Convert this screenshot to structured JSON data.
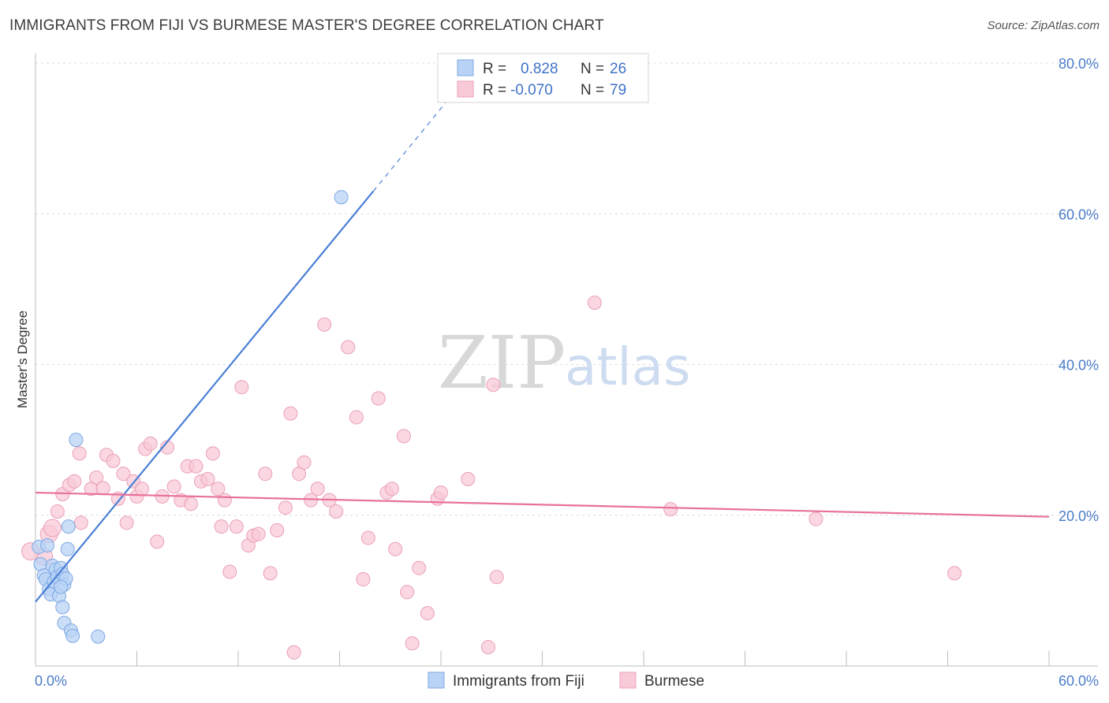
{
  "title": "IMMIGRANTS FROM FIJI VS BURMESE MASTER'S DEGREE CORRELATION CHART",
  "source": "Source: ZipAtlas.com",
  "watermark": {
    "zip": "ZIP",
    "atlas": "atlas"
  },
  "colors": {
    "fiji": "#4a7fd6",
    "burmese": "#e8719a",
    "fiji_fill": "#b8d3f5",
    "burmese_fill": "#f8c9d7"
  },
  "legend": {
    "r_label": "R =",
    "n_label": "N =",
    "fiji": {
      "r": "0.828",
      "n": "26"
    },
    "burmese": {
      "r": "-0.070",
      "n": "79"
    }
  },
  "bottom_legend": [
    "Immigrants from Fiji",
    "Burmese"
  ],
  "chart_data": {
    "type": "scatter",
    "title": "IMMIGRANTS FROM FIJI VS BURMESE MASTER'S DEGREE CORRELATION CHART",
    "xlabel": "",
    "ylabel": "Master's Degree",
    "xlim": [
      0,
      60
    ],
    "ylim": [
      0,
      80
    ],
    "x_tick_labels": [
      "0.0%",
      "60.0%"
    ],
    "y_tick_labels": [
      "20.0%",
      "40.0%",
      "60.0%",
      "80.0%"
    ],
    "y_ticks": [
      20,
      40,
      60,
      80
    ],
    "grid": true,
    "series": [
      {
        "name": "Immigrants from Fiji",
        "points": [
          [
            0.2,
            15.8
          ],
          [
            0.3,
            13.5
          ],
          [
            0.5,
            12.0
          ],
          [
            0.6,
            11.5
          ],
          [
            0.7,
            16.0
          ],
          [
            0.8,
            10.2
          ],
          [
            0.9,
            9.5
          ],
          [
            1.0,
            13.3
          ],
          [
            1.1,
            11.2
          ],
          [
            1.2,
            12.8
          ],
          [
            1.3,
            11.8
          ],
          [
            1.4,
            9.3
          ],
          [
            1.5,
            13.0
          ],
          [
            1.6,
            12.2
          ],
          [
            1.7,
            10.8
          ],
          [
            1.8,
            11.6
          ],
          [
            1.5,
            10.5
          ],
          [
            1.6,
            7.8
          ],
          [
            1.9,
            15.5
          ],
          [
            1.95,
            18.5
          ],
          [
            2.4,
            30.0
          ],
          [
            1.7,
            5.7
          ],
          [
            2.1,
            4.7
          ],
          [
            2.2,
            4.0
          ],
          [
            3.7,
            3.9
          ],
          [
            18.1,
            62.2
          ]
        ],
        "trend": {
          "x0": 0,
          "y0": 8.5,
          "x1": 20,
          "y1": 63.0,
          "dash_to_x": 24.3,
          "dash_to_y": 74.8
        }
      },
      {
        "name": "Burmese",
        "points": [
          [
            0.5,
            14.5
          ],
          [
            0.8,
            17.5
          ],
          [
            1.0,
            18.3
          ],
          [
            1.3,
            20.5
          ],
          [
            1.6,
            22.8
          ],
          [
            2.0,
            24.0
          ],
          [
            2.3,
            24.5
          ],
          [
            2.6,
            28.2
          ],
          [
            2.7,
            19.0
          ],
          [
            3.3,
            23.5
          ],
          [
            3.6,
            25.0
          ],
          [
            4.0,
            23.6
          ],
          [
            4.2,
            28.0
          ],
          [
            4.6,
            27.2
          ],
          [
            4.9,
            22.2
          ],
          [
            5.2,
            25.5
          ],
          [
            5.4,
            19.0
          ],
          [
            5.8,
            24.5
          ],
          [
            6.0,
            22.5
          ],
          [
            6.3,
            23.5
          ],
          [
            6.5,
            28.8
          ],
          [
            6.8,
            29.5
          ],
          [
            7.2,
            16.5
          ],
          [
            7.5,
            22.5
          ],
          [
            7.8,
            29.0
          ],
          [
            8.2,
            23.8
          ],
          [
            8.6,
            22.0
          ],
          [
            9.0,
            26.5
          ],
          [
            9.2,
            21.5
          ],
          [
            9.5,
            26.5
          ],
          [
            9.8,
            24.5
          ],
          [
            10.2,
            24.8
          ],
          [
            10.5,
            28.2
          ],
          [
            10.8,
            23.5
          ],
          [
            11.0,
            18.5
          ],
          [
            11.2,
            22.0
          ],
          [
            11.5,
            12.5
          ],
          [
            11.9,
            18.5
          ],
          [
            12.2,
            37.0
          ],
          [
            12.6,
            16.0
          ],
          [
            12.9,
            17.3
          ],
          [
            13.2,
            17.5
          ],
          [
            13.6,
            25.5
          ],
          [
            13.9,
            12.3
          ],
          [
            14.3,
            18.0
          ],
          [
            14.8,
            21.0
          ],
          [
            15.1,
            33.5
          ],
          [
            15.3,
            1.8
          ],
          [
            15.6,
            25.5
          ],
          [
            15.9,
            27.0
          ],
          [
            16.3,
            22.0
          ],
          [
            16.7,
            23.5
          ],
          [
            17.1,
            45.3
          ],
          [
            17.4,
            22.0
          ],
          [
            17.8,
            20.5
          ],
          [
            18.5,
            42.3
          ],
          [
            19.0,
            33.0
          ],
          [
            19.4,
            11.5
          ],
          [
            19.7,
            17.0
          ],
          [
            20.3,
            35.5
          ],
          [
            20.8,
            23.0
          ],
          [
            21.1,
            23.5
          ],
          [
            21.3,
            15.5
          ],
          [
            21.8,
            30.5
          ],
          [
            22.0,
            9.8
          ],
          [
            22.3,
            3.0
          ],
          [
            22.7,
            13.0
          ],
          [
            23.2,
            7.0
          ],
          [
            23.8,
            22.2
          ],
          [
            24.0,
            23.0
          ],
          [
            25.6,
            24.8
          ],
          [
            26.8,
            2.5
          ],
          [
            27.1,
            37.3
          ],
          [
            27.3,
            11.8
          ],
          [
            33.1,
            48.2
          ],
          [
            37.6,
            20.8
          ],
          [
            46.2,
            19.5
          ],
          [
            54.4,
            12.3
          ],
          [
            -0.3,
            15.2
          ]
        ],
        "trend": {
          "x0": 0,
          "y0": 23.0,
          "x1": 60,
          "y1": 19.8
        }
      }
    ]
  }
}
